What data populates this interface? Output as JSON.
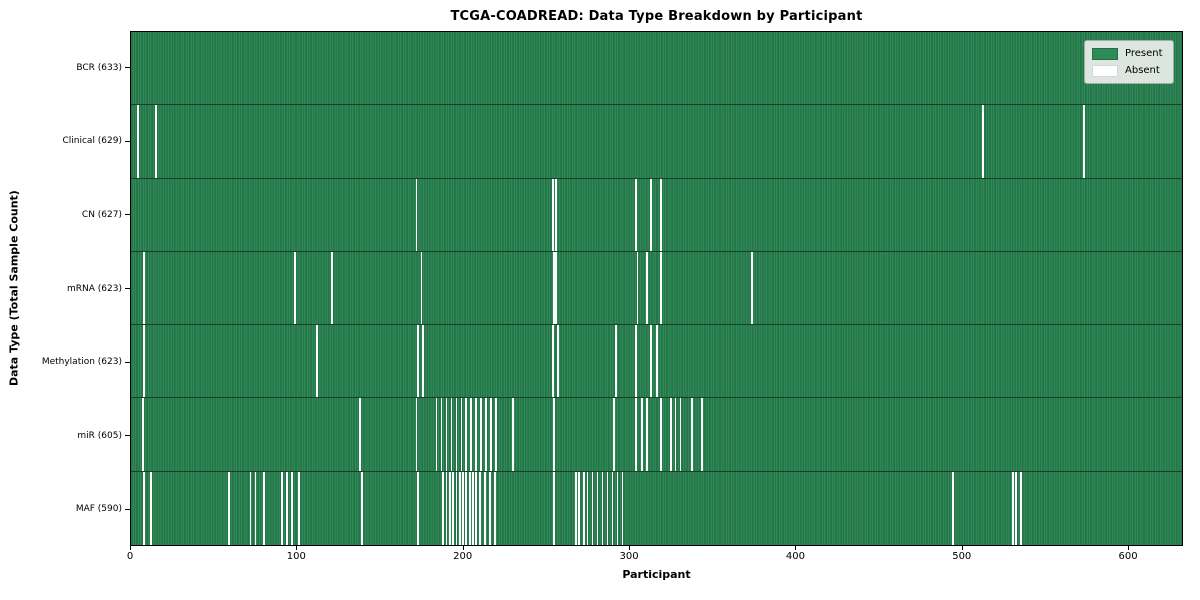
{
  "title": "TCGA-COADREAD: Data Type Breakdown by Participant",
  "xlabel": "Participant",
  "ylabel": "Data Type (Total Sample Count)",
  "legend": {
    "present_label": "Present",
    "absent_label": "Absent"
  },
  "colors": {
    "present": "#2e8b57",
    "absent": "#ffffff",
    "bar_edge": "#1c5838",
    "axis": "#000000",
    "legend_bg": "#ecefec"
  },
  "chart_data": {
    "type": "heatmap",
    "xlabel": "Participant",
    "ylabel": "Data Type (Total Sample Count)",
    "x_range": [
      0,
      633
    ],
    "n_participants": 633,
    "x_ticks": [
      0,
      100,
      200,
      300,
      400,
      500,
      600
    ],
    "legend_position": "upper right",
    "grid": false,
    "rows": [
      {
        "name": "BCR",
        "label": "BCR (633)",
        "present_count": 633,
        "absent_participants": []
      },
      {
        "name": "Clinical",
        "label": "Clinical (629)",
        "present_count": 629,
        "absent_participants": [
          4,
          15,
          513,
          574
        ]
      },
      {
        "name": "CN",
        "label": "CN (627)",
        "present_count": 627,
        "absent_participants": [
          172,
          254,
          256,
          304,
          313,
          319
        ]
      },
      {
        "name": "mRNA",
        "label": "mRNA (623)",
        "present_count": 623,
        "absent_participants": [
          8,
          99,
          121,
          175,
          255,
          256,
          305,
          311,
          319,
          374
        ]
      },
      {
        "name": "Methylation",
        "label": "Methylation (623)",
        "present_count": 623,
        "absent_participants": [
          8,
          112,
          173,
          176,
          254,
          257,
          292,
          304,
          313,
          317
        ]
      },
      {
        "name": "miR",
        "label": "miR (605)",
        "present_count": 605,
        "absent_participants": [
          7,
          138,
          172,
          184,
          187,
          190,
          193,
          196,
          199,
          202,
          205,
          208,
          211,
          214,
          217,
          220,
          230,
          255,
          291,
          304,
          308,
          311,
          319,
          325,
          328,
          331,
          338,
          344
        ]
      },
      {
        "name": "MAF",
        "label": "MAF (590)",
        "present_count": 590,
        "absent_participants": [
          8,
          12,
          59,
          72,
          75,
          80,
          91,
          94,
          97,
          101,
          139,
          173,
          188,
          190,
          192,
          194,
          196,
          198,
          200,
          202,
          204,
          206,
          208,
          210,
          213,
          216,
          219,
          255,
          268,
          270,
          273,
          275,
          278,
          281,
          284,
          287,
          290,
          293,
          296,
          495,
          531,
          533,
          536
        ]
      }
    ]
  }
}
